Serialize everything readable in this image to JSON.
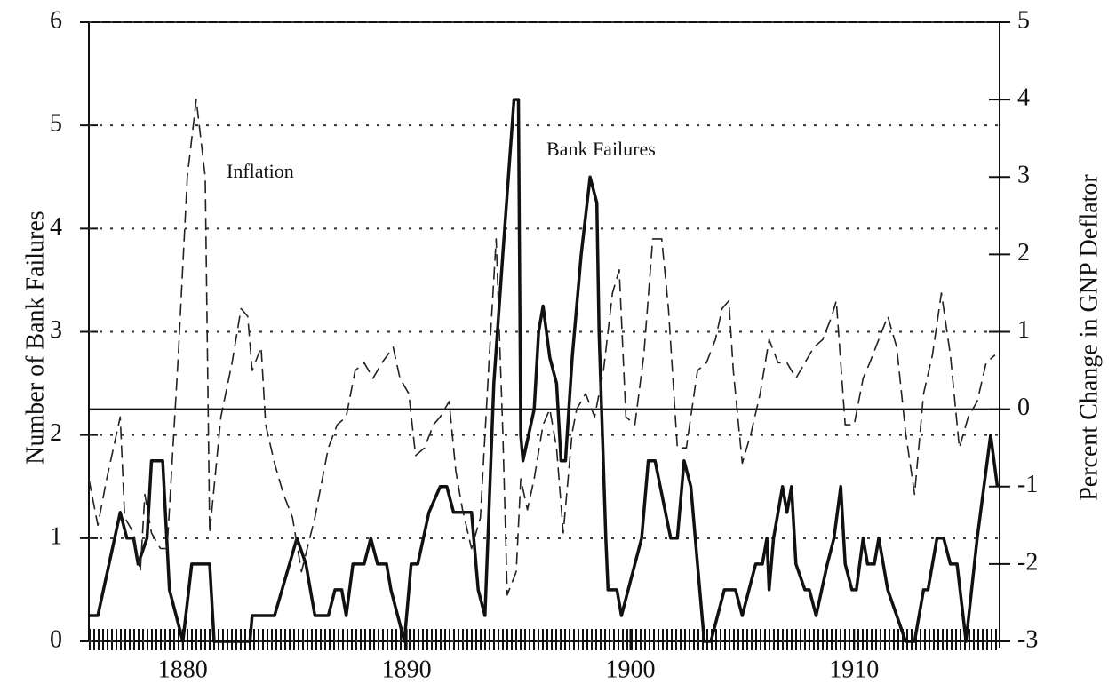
{
  "chart_data": {
    "type": "line",
    "y_axis_label": "Number of Bank Failures",
    "y2_axis_label": "Percent Change in GNP Deflator",
    "xlim": [
      1875.8,
      1916.5
    ],
    "xticks": [
      1880,
      1890,
      1900,
      1910
    ],
    "ylim": [
      0,
      6
    ],
    "yticks": [
      0,
      1,
      2,
      3,
      4,
      5,
      6
    ],
    "y2lim": [
      -3,
      5
    ],
    "y2ticks": [
      -3,
      -2,
      -1,
      0,
      1,
      2,
      3,
      4,
      5
    ],
    "grid": true,
    "y2_zero_line": true,
    "series": [
      {
        "name": "Bank Failures",
        "color": "#111111",
        "style": "solid",
        "width": 3.5,
        "x": [
          1875.8,
          1876.2,
          1877.2,
          1877.5,
          1877.8,
          1878.0,
          1878.4,
          1878.6,
          1879.1,
          1879.4,
          1880.0,
          1880.4,
          1881.2,
          1881.4,
          1883.0,
          1883.1,
          1884.1,
          1885.1,
          1885.5,
          1885.9,
          1886.5,
          1886.8,
          1887.1,
          1887.3,
          1887.6,
          1888.1,
          1888.4,
          1888.7,
          1889.1,
          1889.3,
          1889.9,
          1890.2,
          1890.5,
          1891.0,
          1891.5,
          1891.8,
          1892.1,
          1892.9,
          1893.2,
          1893.5,
          1893.9,
          1894.3,
          1894.8,
          1895.0,
          1895.1,
          1895.2,
          1895.7,
          1895.9,
          1896.1,
          1896.4,
          1896.7,
          1896.9,
          1897.1,
          1897.4,
          1897.8,
          1898.2,
          1898.5,
          1898.6,
          1898.9,
          1899.0,
          1899.4,
          1899.6,
          1900.5,
          1900.8,
          1901.1,
          1901.8,
          1902.1,
          1902.4,
          1902.7,
          1903.0,
          1903.3,
          1903.6,
          1904.2,
          1904.7,
          1905.0,
          1905.6,
          1905.9,
          1906.1,
          1906.2,
          1906.4,
          1906.8,
          1907.0,
          1907.2,
          1907.4,
          1907.8,
          1908.0,
          1908.3,
          1908.8,
          1909.1,
          1909.4,
          1909.6,
          1909.9,
          1910.1,
          1910.4,
          1910.6,
          1910.9,
          1911.1,
          1911.5,
          1911.9,
          1912.3,
          1912.7,
          1913.1,
          1913.3,
          1913.7,
          1914.0,
          1914.3,
          1914.6,
          1915.0,
          1915.5,
          1916.1,
          1916.4
        ],
        "values": [
          0.25,
          0.25,
          1.25,
          1.0,
          1.0,
          0.75,
          1.0,
          1.75,
          1.75,
          0.5,
          0,
          0.75,
          0.75,
          0,
          0,
          0.25,
          0.25,
          1.0,
          0.75,
          0.25,
          0.25,
          0.5,
          0.5,
          0.25,
          0.75,
          0.75,
          1.0,
          0.75,
          0.75,
          0.5,
          0,
          0.75,
          0.75,
          1.25,
          1.5,
          1.5,
          1.25,
          1.25,
          0.5,
          0.25,
          2.5,
          3.75,
          5.25,
          5.25,
          2.0,
          1.75,
          2.25,
          3.0,
          3.25,
          2.75,
          2.5,
          1.75,
          1.75,
          2.75,
          3.75,
          4.5,
          4.25,
          3.0,
          1.0,
          0.5,
          0.5,
          0.25,
          1.0,
          1.75,
          1.75,
          1.0,
          1.0,
          1.75,
          1.5,
          0.75,
          0,
          0,
          0.5,
          0.5,
          0.25,
          0.75,
          0.75,
          1.0,
          0.5,
          1.0,
          1.5,
          1.25,
          1.5,
          0.75,
          0.5,
          0.5,
          0.25,
          0.75,
          1.0,
          1.5,
          0.75,
          0.5,
          0.5,
          1.0,
          0.75,
          0.75,
          1.0,
          0.5,
          0.25,
          0,
          0,
          0.5,
          0.5,
          1.0,
          1.0,
          0.75,
          0.75,
          0,
          1.0,
          2.0,
          1.5
        ]
      },
      {
        "name": "Inflation",
        "color": "#222222",
        "style": "dashed",
        "width": 1.6,
        "axis": "y2",
        "x": [
          1875.8,
          1876.2,
          1876.6,
          1877.2,
          1877.4,
          1877.8,
          1878.1,
          1878.3,
          1878.6,
          1879.0,
          1879.3,
          1879.8,
          1880.2,
          1880.6,
          1881.0,
          1881.2,
          1881.7,
          1882.2,
          1882.6,
          1882.9,
          1883.1,
          1883.5,
          1883.7,
          1884.1,
          1884.5,
          1884.9,
          1885.3,
          1885.9,
          1886.5,
          1886.9,
          1887.3,
          1887.7,
          1888.1,
          1888.5,
          1888.9,
          1889.4,
          1889.7,
          1890.1,
          1890.4,
          1890.8,
          1891.2,
          1891.5,
          1891.9,
          1892.2,
          1892.5,
          1892.9,
          1893.3,
          1893.7,
          1894.0,
          1894.3,
          1894.5,
          1894.9,
          1895.1,
          1895.4,
          1895.7,
          1896.1,
          1896.4,
          1896.7,
          1897.0,
          1897.4,
          1897.6,
          1898.0,
          1898.4,
          1898.8,
          1899.2,
          1899.5,
          1899.8,
          1900.2,
          1900.6,
          1901.0,
          1901.4,
          1901.7,
          1902.1,
          1902.5,
          1903.0,
          1903.4,
          1903.8,
          1904.1,
          1904.4,
          1904.6,
          1905.0,
          1905.4,
          1905.8,
          1906.2,
          1906.6,
          1907.0,
          1907.4,
          1907.8,
          1908.2,
          1908.6,
          1909.0,
          1909.2,
          1909.6,
          1910.0,
          1910.4,
          1910.7,
          1911.1,
          1911.5,
          1911.9,
          1912.3,
          1912.7,
          1913.1,
          1913.5,
          1913.9,
          1914.3,
          1914.7,
          1915.1,
          1915.5,
          1915.9,
          1916.3
        ],
        "values": [
          -0.9,
          -1.5,
          -0.9,
          -0.1,
          -1.4,
          -1.6,
          -2.1,
          -1.1,
          -1.6,
          -1.8,
          -1.8,
          0.7,
          3.0,
          4.0,
          3.0,
          -1.6,
          -0.1,
          0.6,
          1.3,
          1.2,
          0.5,
          0.8,
          -0.2,
          -0.7,
          -1.1,
          -1.4,
          -2.1,
          -1.4,
          -0.5,
          -0.2,
          -0.1,
          0.5,
          0.6,
          0.4,
          0.6,
          0.8,
          0.4,
          0.2,
          -0.6,
          -0.5,
          -0.2,
          -0.1,
          0.1,
          -0.8,
          -1.3,
          -1.8,
          -1.4,
          0.7,
          2.2,
          -0.3,
          -2.4,
          -2.1,
          -0.9,
          -1.3,
          -0.9,
          -0.2,
          0.0,
          -0.5,
          -1.6,
          -0.3,
          0.0,
          0.2,
          -0.1,
          0.5,
          1.5,
          1.8,
          -0.1,
          -0.2,
          0.7,
          2.2,
          2.2,
          1.3,
          -0.5,
          -0.5,
          0.5,
          0.6,
          0.9,
          1.3,
          1.4,
          0.5,
          -0.7,
          -0.3,
          0.2,
          0.9,
          0.6,
          0.6,
          0.4,
          0.6,
          0.8,
          0.9,
          1.2,
          1.4,
          -0.2,
          -0.2,
          0.4,
          0.6,
          0.9,
          1.2,
          0.8,
          -0.3,
          -1.1,
          0.2,
          0.7,
          1.5,
          0.7,
          -0.5,
          -0.1,
          0.1,
          0.6,
          0.7
        ]
      }
    ]
  }
}
